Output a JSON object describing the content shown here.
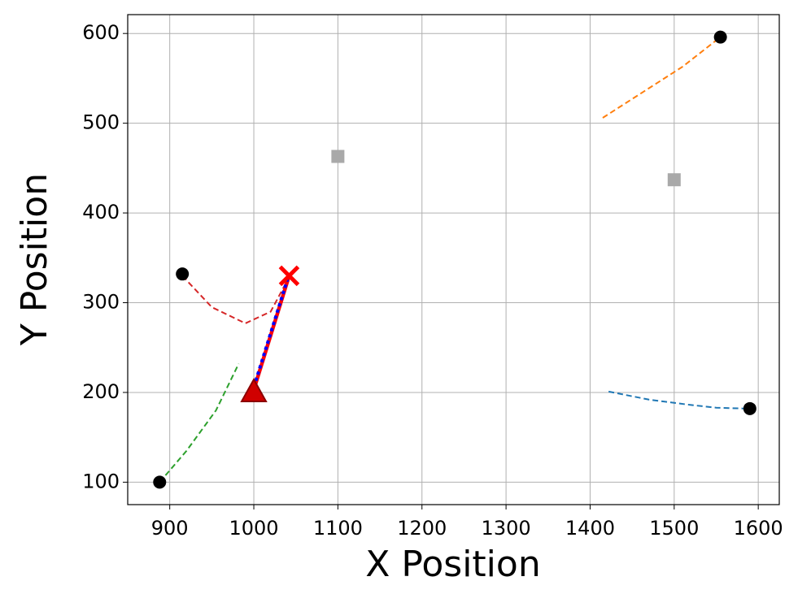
{
  "chart_data": {
    "type": "scatter",
    "xlabel": "X Position",
    "ylabel": "Y Position",
    "xlim": [
      850,
      1625
    ],
    "ylim": [
      75,
      621
    ],
    "xticks": [
      900,
      1000,
      1100,
      1200,
      1300,
      1400,
      1500,
      1600
    ],
    "yticks": [
      100,
      200,
      300,
      400,
      500,
      600
    ],
    "grid": true,
    "series": [
      {
        "color": "#1f77b4",
        "style": "dashed",
        "x": [
          1422,
          1470,
          1520,
          1550,
          1585
        ],
        "values": [
          201,
          192,
          186,
          183,
          182
        ]
      },
      {
        "color": "#ff7f0e",
        "style": "dashed",
        "x": [
          1415,
          1460,
          1510,
          1555
        ],
        "values": [
          506,
          533,
          563,
          596
        ]
      },
      {
        "color": "#2ca02c",
        "style": "dashed",
        "x": [
          888,
          920,
          955,
          982
        ],
        "values": [
          100,
          135,
          180,
          232
        ]
      },
      {
        "color": "#d62728",
        "style": "dashed",
        "x": [
          915,
          950,
          990,
          1020,
          1040
        ],
        "values": [
          330,
          295,
          277,
          290,
          325
        ]
      },
      {
        "color": "#ff0000",
        "style": "solid",
        "x": [
          1000,
          1042
        ],
        "values": [
          203,
          330
        ]
      },
      {
        "color": "#0000ff",
        "style": "dotted",
        "x": [
          1000,
          1040
        ],
        "values": [
          206,
          326
        ]
      }
    ],
    "markers": [
      {
        "marker": "circle",
        "color": "#000000",
        "x": [
          1590,
          1555,
          888,
          915
        ],
        "values": [
          182,
          596,
          100,
          332
        ]
      },
      {
        "marker": "square",
        "color": "#a9a9a9",
        "x": [
          1100,
          1500
        ],
        "values": [
          463,
          437
        ]
      },
      {
        "marker": "triangle",
        "color": "#d00000",
        "x": [
          1000
        ],
        "values": [
          200
        ]
      },
      {
        "marker": "cross",
        "color": "#ff0000",
        "x": [
          1042
        ],
        "values": [
          330
        ]
      }
    ]
  }
}
